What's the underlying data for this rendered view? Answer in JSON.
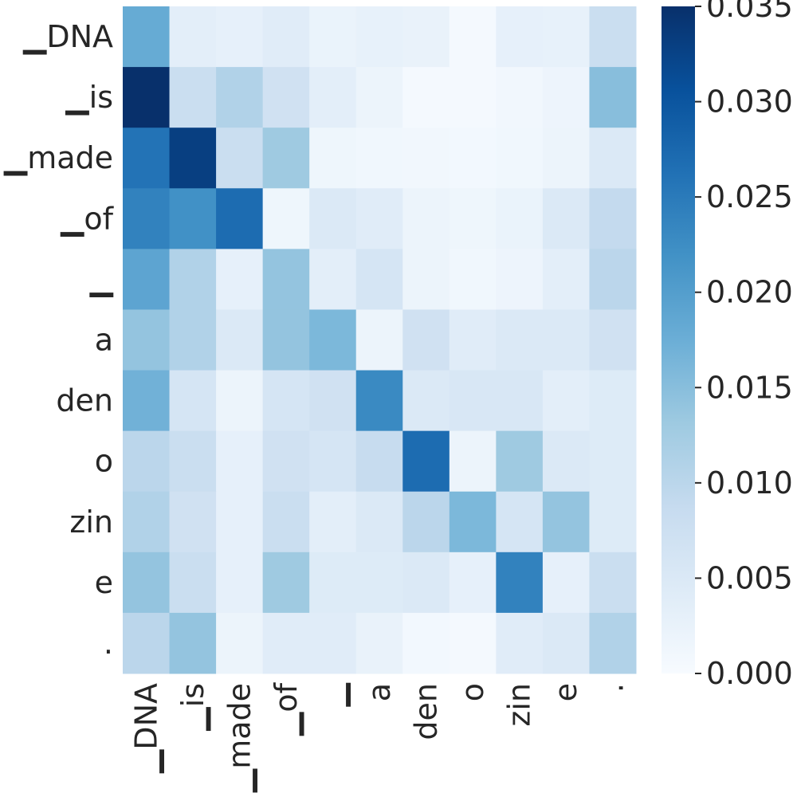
{
  "chart_data": {
    "type": "heatmap",
    "title": "",
    "xlabel": "",
    "ylabel": "",
    "x_tokens": [
      "▁DNA",
      "▁is",
      "▁made",
      "▁of",
      "▁",
      "a",
      "den",
      "o",
      "zin",
      "e",
      "."
    ],
    "y_tokens": [
      "▁DNA",
      "▁is",
      "▁made",
      "▁of",
      "▁",
      "a",
      "den",
      "o",
      "zin",
      "e",
      "."
    ],
    "values": [
      [
        0.018,
        0.0035,
        0.003,
        0.004,
        0.0022,
        0.0028,
        0.0025,
        0.0005,
        0.003,
        0.0028,
        0.008
      ],
      [
        0.035,
        0.008,
        0.011,
        0.007,
        0.0035,
        0.002,
        0.0005,
        0.0005,
        0.001,
        0.0018,
        0.015
      ],
      [
        0.026,
        0.033,
        0.008,
        0.013,
        0.0015,
        0.0012,
        0.001,
        0.0008,
        0.0012,
        0.002,
        0.005
      ],
      [
        0.024,
        0.022,
        0.027,
        0.0015,
        0.005,
        0.004,
        0.002,
        0.0015,
        0.0022,
        0.005,
        0.009
      ],
      [
        0.019,
        0.011,
        0.003,
        0.014,
        0.0035,
        0.006,
        0.002,
        0.0012,
        0.0018,
        0.0035,
        0.01
      ],
      [
        0.014,
        0.011,
        0.005,
        0.014,
        0.016,
        0.002,
        0.007,
        0.004,
        0.005,
        0.005,
        0.007
      ],
      [
        0.017,
        0.006,
        0.002,
        0.006,
        0.007,
        0.023,
        0.005,
        0.0055,
        0.0055,
        0.0035,
        0.0045
      ],
      [
        0.01,
        0.008,
        0.003,
        0.007,
        0.006,
        0.0085,
        0.027,
        0.002,
        0.013,
        0.005,
        0.0045
      ],
      [
        0.011,
        0.007,
        0.003,
        0.008,
        0.0035,
        0.005,
        0.01,
        0.016,
        0.006,
        0.014,
        0.0045
      ],
      [
        0.014,
        0.008,
        0.003,
        0.013,
        0.0045,
        0.0045,
        0.005,
        0.003,
        0.024,
        0.003,
        0.008
      ],
      [
        0.01,
        0.014,
        0.002,
        0.004,
        0.004,
        0.0025,
        0.0008,
        0.0005,
        0.004,
        0.005,
        0.011
      ]
    ],
    "colormap": "Blues",
    "vmin": 0.0,
    "vmax": 0.035,
    "colorbar_ticks": [
      "0.000",
      "0.005",
      "0.010",
      "0.015",
      "0.020",
      "0.025",
      "0.030",
      "0.035"
    ],
    "colorbar_tick_values": [
      0.0,
      0.005,
      0.01,
      0.015,
      0.02,
      0.025,
      0.03,
      0.035
    ],
    "colorbar_position": "right"
  }
}
